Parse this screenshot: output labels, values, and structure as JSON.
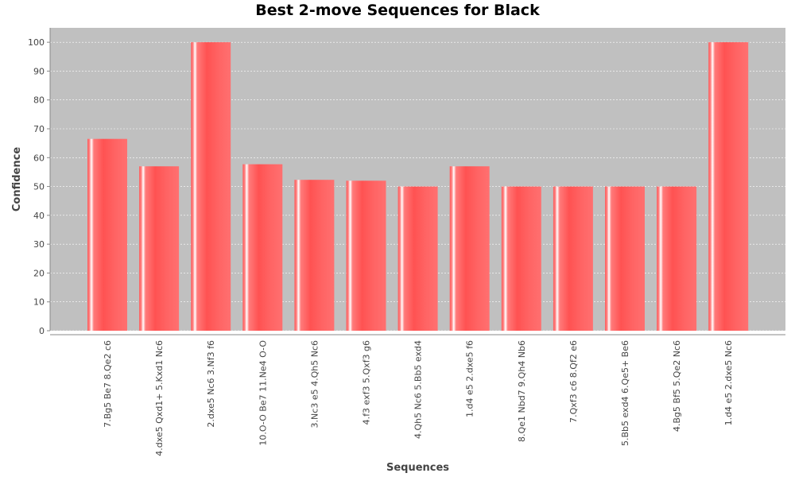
{
  "chart_data": {
    "type": "bar",
    "title": "Best 2-move Sequences for Black",
    "xlabel": "Sequences",
    "ylabel": "Confidence",
    "ylim": [
      0,
      105
    ],
    "yticks": [
      0,
      10,
      20,
      30,
      40,
      50,
      60,
      70,
      80,
      90,
      100
    ],
    "grid": true,
    "categories": [
      "7.Bg5 Be7 8.Qe2 c6",
      "4.dxe5 Qxd1+ 5.Kxd1 Nc6",
      "2.dxe5 Nc6 3.Nf3 f6",
      "10.O-O Be7 11.Ne4 O-O",
      "3.Nc3 e5 4.Qh5 Nc6",
      "4.f3 exf3 5.Qxf3 g6",
      "4.Qh5 Nc6 5.Bb5 exd4",
      "1.d4 e5 2.dxe5 f6",
      "8.Qe1 Nbd7 9.Qh4 Nb6",
      "7.Qxf3 c6 8.Qf2 e6",
      "5.Bb5 exd4 6.Qe5+ Be6",
      "4.Bg5 Bf5 5.Qe2 Nc6",
      "1.d4 e5 2.dxe5 Nc6"
    ],
    "values": [
      66.5,
      57,
      100,
      57.7,
      52.3,
      52,
      50,
      57,
      50,
      50,
      50,
      50,
      100
    ],
    "colors": {
      "plot_background": "#c0c0c0",
      "bar": "#ff5555",
      "bar_highlight": "#ffffff",
      "gridline": "#ffffff",
      "axis": "#888888"
    }
  }
}
